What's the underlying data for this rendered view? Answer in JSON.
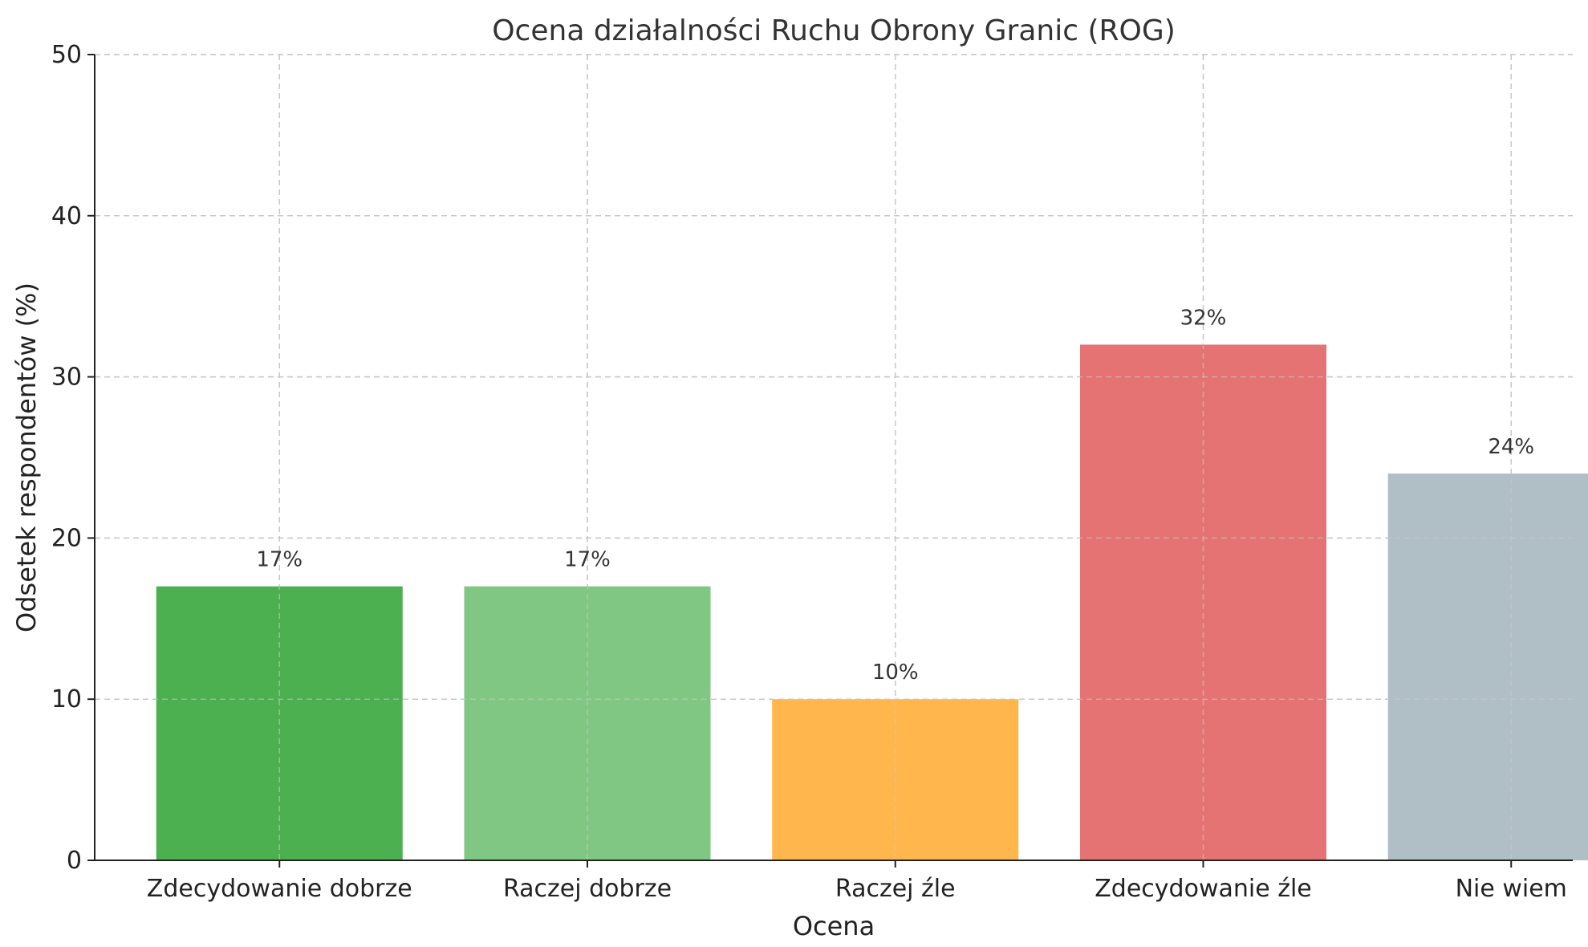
{
  "chart_data": {
    "type": "bar",
    "title": "Ocena działalności Ruchu Obrony Granic (ROG)",
    "xlabel": "Ocena",
    "ylabel": "Odsetek respondentów (%)",
    "categories": [
      "Zdecydowanie dobrze",
      "Raczej dobrze",
      "Raczej źle",
      "Zdecydowanie źle",
      "Nie wiem"
    ],
    "values": [
      17,
      17,
      10,
      32,
      24
    ],
    "value_labels": [
      "17%",
      "17%",
      "10%",
      "32%",
      "24%"
    ],
    "colors": [
      "#4caf50",
      "#81c784",
      "#ffb74d",
      "#e57373",
      "#b0bec5"
    ],
    "ylim": [
      0,
      50
    ],
    "yticks": [
      0,
      10,
      20,
      30,
      40,
      50
    ],
    "ytick_labels": [
      "0",
      "10",
      "20",
      "30",
      "40",
      "50"
    ],
    "grid": true
  }
}
